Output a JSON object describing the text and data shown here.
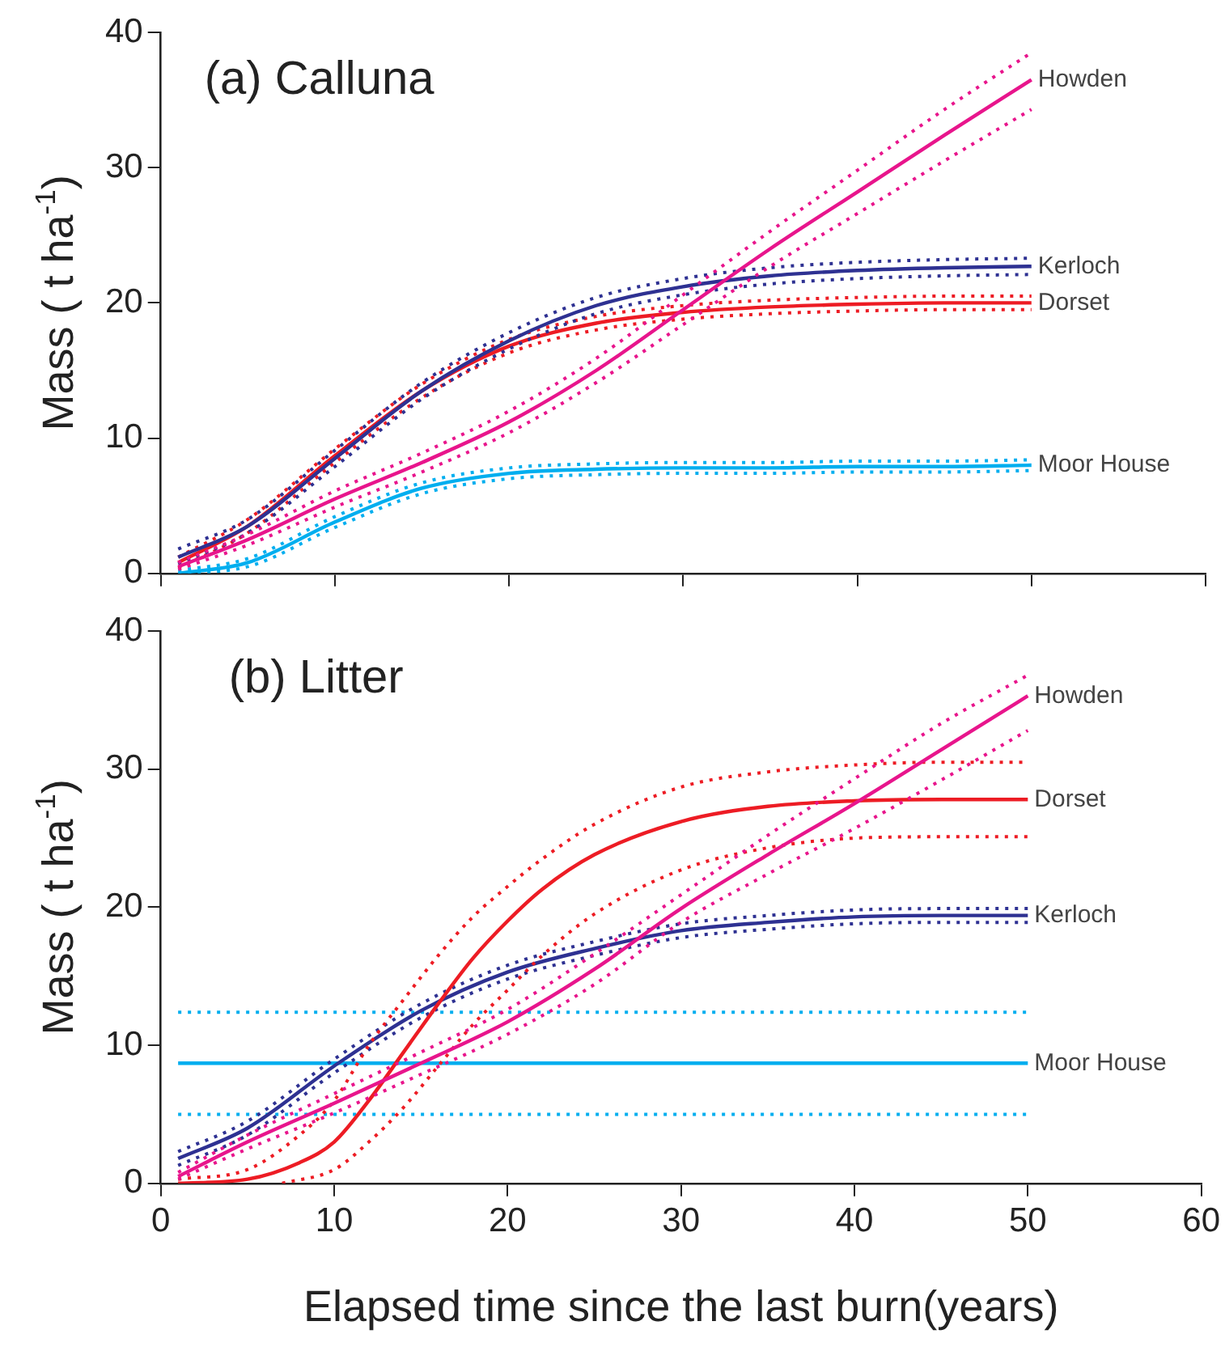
{
  "chart_data": [
    {
      "type": "line",
      "title": "(a) Calluna",
      "ylabel": "Mass ( t ha$^{-1}$)",
      "xlim": [
        0,
        60
      ],
      "xticks": [
        0,
        10,
        20,
        30,
        40,
        50,
        60
      ],
      "ylim": [
        0,
        40
      ],
      "yticks": [
        0,
        10,
        20,
        30,
        40
      ],
      "tick_labels": "y",
      "legend": false,
      "grid": false,
      "line_style": "solid",
      "x": [
        1,
        5,
        10,
        15,
        20,
        25,
        30,
        35,
        40,
        45,
        50
      ],
      "series": [
        {
          "name": "Howden",
          "color": "#e8158c",
          "values": [
            0.5,
            2.5,
            5.5,
            8.2,
            11.2,
            15,
            19.5,
            24,
            28.2,
            32.4,
            36.5
          ]
        },
        {
          "color": "#e8158c",
          "line_style": "dotted",
          "values": [
            0.3,
            2.1,
            4.9,
            7.5,
            10.4,
            14.1,
            18.4,
            22.7,
            26.6,
            30.5,
            34.3
          ]
        },
        {
          "color": "#e8158c",
          "line_style": "dotted",
          "values": [
            0.8,
            2.9,
            6.1,
            8.9,
            12,
            15.9,
            20.6,
            25.3,
            29.8,
            34.3,
            38.5
          ]
        },
        {
          "name": "Kerloch",
          "color": "#2e3192",
          "values": [
            1.2,
            3.5,
            8.5,
            13.5,
            17.2,
            19.8,
            21.2,
            22,
            22.4,
            22.6,
            22.7
          ]
        },
        {
          "color": "#2e3192",
          "line_style": "dotted",
          "values": [
            0.7,
            3,
            7.9,
            12.9,
            16.6,
            19.2,
            20.6,
            21.4,
            21.8,
            22,
            22.1
          ]
        },
        {
          "color": "#2e3192",
          "line_style": "dotted",
          "values": [
            1.8,
            4,
            9.1,
            14.1,
            17.8,
            20.4,
            21.8,
            22.6,
            23,
            23.2,
            23.3
          ]
        },
        {
          "name": "Dorset",
          "color": "#ed1c24",
          "values": [
            0.8,
            3.5,
            8.7,
            13.5,
            16.8,
            18.5,
            19.3,
            19.7,
            19.9,
            20,
            20
          ]
        },
        {
          "color": "#ed1c24",
          "line_style": "dotted",
          "values": [
            0.4,
            3,
            8.2,
            13,
            16.3,
            18,
            18.8,
            19.2,
            19.4,
            19.5,
            19.5
          ]
        },
        {
          "color": "#ed1c24",
          "line_style": "dotted",
          "values": [
            1.2,
            4,
            9.2,
            14,
            17.3,
            19,
            19.8,
            20.2,
            20.4,
            20.5,
            20.5
          ]
        },
        {
          "name": "Moor House",
          "color": "#00aeef",
          "values": [
            0,
            0.8,
            3.8,
            6.3,
            7.4,
            7.7,
            7.8,
            7.8,
            7.9,
            7.9,
            8
          ]
        },
        {
          "color": "#00aeef",
          "line_style": "dotted",
          "values": [
            0,
            0.5,
            3.4,
            5.9,
            7,
            7.3,
            7.4,
            7.4,
            7.5,
            7.5,
            7.6
          ]
        },
        {
          "color": "#00aeef",
          "line_style": "dotted",
          "values": [
            0.2,
            1.1,
            4.2,
            6.7,
            7.8,
            8.1,
            8.2,
            8.2,
            8.3,
            8.3,
            8.4
          ]
        }
      ]
    },
    {
      "type": "line",
      "title": "(b) Litter",
      "xlabel": "Elapsed time since the last burn(years)",
      "ylabel": "Mass ( t ha$^{-1}$)",
      "xlim": [
        0,
        60
      ],
      "xticks": [
        0,
        10,
        20,
        30,
        40,
        50,
        60
      ],
      "ylim": [
        0,
        40
      ],
      "yticks": [
        0,
        10,
        20,
        30,
        40
      ],
      "legend": false,
      "grid": false,
      "line_style": "solid",
      "x": [
        1,
        5,
        10,
        15,
        20,
        25,
        30,
        35,
        40,
        45,
        50
      ],
      "series": [
        {
          "name": "Howden",
          "color": "#e8158c",
          "values": [
            0.5,
            3,
            5.8,
            8.7,
            11.7,
            15.5,
            19.9,
            23.8,
            27.5,
            31.4,
            35.3
          ]
        },
        {
          "color": "#e8158c",
          "line_style": "dotted",
          "values": [
            0.3,
            2.5,
            5.1,
            7.9,
            10.8,
            14.4,
            18.9,
            22.4,
            25.7,
            29.2,
            32.8
          ]
        },
        {
          "color": "#e8158c",
          "line_style": "dotted",
          "values": [
            0.8,
            3.5,
            6.5,
            9.5,
            12.6,
            16.6,
            20.9,
            25.2,
            29.3,
            33.3,
            36.8
          ]
        },
        {
          "name": "Dorset",
          "color": "#ed1c24",
          "x": [
            1,
            5,
            8,
            10,
            12,
            14,
            16,
            18,
            20,
            22,
            25,
            30,
            35,
            40,
            45,
            50
          ],
          "values": [
            0,
            0.3,
            1.5,
            3,
            6,
            9.5,
            13,
            16.3,
            19,
            21.3,
            23.8,
            26.2,
            27.3,
            27.7,
            27.8,
            27.8
          ]
        },
        {
          "color": "#ed1c24",
          "line_style": "dotted",
          "x": [
            7,
            10,
            12,
            14,
            16,
            18,
            20,
            22,
            25,
            30,
            35,
            40,
            45,
            50
          ],
          "values": [
            0,
            1,
            3,
            5.5,
            8.5,
            11.5,
            14,
            16.5,
            19.5,
            22.7,
            24.3,
            25,
            25.1,
            25.1
          ]
        },
        {
          "color": "#ed1c24",
          "line_style": "dotted",
          "x": [
            1,
            5,
            8,
            10,
            12,
            14,
            16,
            18,
            20,
            22,
            25,
            30,
            35,
            40,
            45,
            50
          ],
          "values": [
            0.3,
            1,
            3.5,
            6,
            10,
            13.3,
            16.5,
            19.3,
            21.5,
            23.5,
            26,
            28.7,
            29.8,
            30.3,
            30.5,
            30.5
          ]
        },
        {
          "name": "Kerloch",
          "color": "#2e3192",
          "values": [
            1.8,
            4,
            8.5,
            12.5,
            15.3,
            17,
            18.3,
            18.9,
            19.3,
            19.4,
            19.4
          ]
        },
        {
          "color": "#2e3192",
          "line_style": "dotted",
          "values": [
            1.3,
            3.5,
            8,
            12,
            14.8,
            16.5,
            17.8,
            18.4,
            18.8,
            18.9,
            18.9
          ]
        },
        {
          "color": "#2e3192",
          "line_style": "dotted",
          "values": [
            2.3,
            4.5,
            9,
            13,
            15.8,
            17.5,
            18.8,
            19.4,
            19.8,
            19.9,
            19.9
          ]
        },
        {
          "name": "Moor House",
          "color": "#00aeef",
          "x": [
            1,
            50
          ],
          "values": [
            8.7,
            8.7
          ]
        },
        {
          "color": "#00aeef",
          "line_style": "dotted",
          "x": [
            1,
            50
          ],
          "values": [
            5,
            5
          ]
        },
        {
          "color": "#00aeef",
          "line_style": "dotted",
          "x": [
            1,
            50
          ],
          "values": [
            12.4,
            12.4
          ]
        }
      ]
    }
  ]
}
